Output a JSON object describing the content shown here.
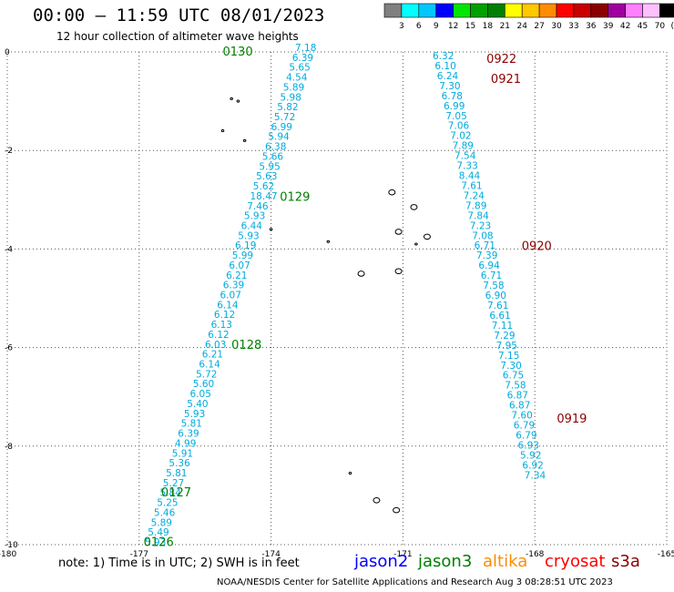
{
  "header": {
    "title": "00:00 – 11:59 UTC 08/01/2023",
    "subtitle": "12 hour collection of altimeter wave heights"
  },
  "colorbar": {
    "labels": [
      "3",
      "6",
      "9",
      "12",
      "15",
      "18",
      "21",
      "24",
      "27",
      "30",
      "33",
      "36",
      "39",
      "42",
      "45",
      "70",
      "(ft)"
    ],
    "colors": [
      "#808080",
      "#00ffff",
      "#00c8ff",
      "#0000ff",
      "#00e600",
      "#00a000",
      "#008000",
      "#ffff00",
      "#ffc800",
      "#ff8c00",
      "#ff0000",
      "#c80000",
      "#8b0000",
      "#a000a0",
      "#ff80ff",
      "#ffc0ff",
      "#000000"
    ]
  },
  "map": {
    "x_ticks": [
      "-180",
      "-177",
      "-174",
      "-171",
      "-168",
      "-165"
    ],
    "y_ticks": [
      "0",
      "-2",
      "-4",
      "-6",
      "-8",
      "-10"
    ],
    "x_range": [
      -180,
      -165
    ],
    "y_range": [
      -10,
      0
    ],
    "grid": "dotted"
  },
  "track_colors": {
    "values": "#00aadd",
    "jason3_time": "#008000",
    "cryosat_time": "#8b0000"
  },
  "tracks": [
    {
      "satellite": "jason3",
      "time_labels": [
        {
          "text": "0130",
          "lon": -175.1,
          "lat": 0.0
        },
        {
          "text": "0129",
          "lon": -173.8,
          "lat": -2.95
        },
        {
          "text": "0128",
          "lon": -174.9,
          "lat": -5.95
        },
        {
          "text": "0127",
          "lon": -176.5,
          "lat": -8.95
        },
        {
          "text": "0126",
          "lon": -176.9,
          "lat": -9.95
        }
      ],
      "values": [
        "7.18",
        "6.39",
        "5.65",
        "4.54",
        "5.89",
        "5.98",
        "5.82",
        "5.72",
        "6.99",
        "5.94",
        "6.38",
        "5.66",
        "5.95",
        "5.63",
        "5.62",
        "18.47",
        "7.46",
        "5.93",
        "6.44",
        "5.93",
        "6.19",
        "5.99",
        "6.07",
        "6.21",
        "6.39",
        "6.07",
        "6.14",
        "6.12",
        "6.13",
        "6.12",
        "6.03",
        "6.21",
        "6.14",
        "5.72",
        "5.60",
        "6.05",
        "5.40",
        "5.93",
        "5.81",
        "6.39",
        "4.99",
        "5.91",
        "5.36",
        "5.81",
        "5.27",
        "5.84",
        "5.25",
        "5.46",
        "5.89",
        "5.49",
        "5.93"
      ]
    },
    {
      "satellite": "cryosat",
      "time_labels": [
        {
          "text": "0922",
          "lon": -169.1,
          "lat": -0.15
        },
        {
          "text": "0921",
          "lon": -169.0,
          "lat": -0.55
        },
        {
          "text": "0920",
          "lon": -168.3,
          "lat": -3.95
        },
        {
          "text": "0919",
          "lon": -167.5,
          "lat": -7.45
        }
      ],
      "values": [
        "6.32",
        "6.10",
        "6.24",
        "7.30",
        "6.78",
        "6.99",
        "7.05",
        "7.06",
        "7.02",
        "7.89",
        "7.54",
        "7.33",
        "8.44",
        "7.61",
        "7.24",
        "7.89",
        "7.84",
        "7.23",
        "7.08",
        "6.71",
        "7.39",
        "6.94",
        "6.71",
        "7.58",
        "6.90",
        "7.61",
        "6.61",
        "7.11",
        "7.29",
        "7.95",
        "7.15",
        "7.30",
        "6.75",
        "7.58",
        "6.87",
        "6.87",
        "7.60",
        "6.79",
        "6.79",
        "6.93",
        "5.92",
        "6.92",
        "7.34"
      ]
    }
  ],
  "islands": [
    {
      "lon": -174.9,
      "lat": -0.95,
      "size": "tiny"
    },
    {
      "lon": -174.75,
      "lat": -1.0,
      "size": "tiny"
    },
    {
      "lon": -175.1,
      "lat": -1.6,
      "size": "tiny"
    },
    {
      "lon": -174.6,
      "lat": -1.8,
      "size": "tiny"
    },
    {
      "lon": -171.25,
      "lat": -2.85,
      "size": "small"
    },
    {
      "lon": -170.75,
      "lat": -3.15,
      "size": "small"
    },
    {
      "lon": -171.1,
      "lat": -3.65,
      "size": "small"
    },
    {
      "lon": -170.45,
      "lat": -3.75,
      "size": "small"
    },
    {
      "lon": -174.0,
      "lat": -3.6,
      "size": "tiny"
    },
    {
      "lon": -172.7,
      "lat": -3.85,
      "size": "tiny"
    },
    {
      "lon": -170.7,
      "lat": -3.9,
      "size": "tiny"
    },
    {
      "lon": -171.95,
      "lat": -4.5,
      "size": "small"
    },
    {
      "lon": -171.1,
      "lat": -4.45,
      "size": "small"
    },
    {
      "lon": -172.2,
      "lat": -8.55,
      "size": "tiny"
    },
    {
      "lon": -171.6,
      "lat": -9.1,
      "size": "small"
    },
    {
      "lon": -171.15,
      "lat": -9.3,
      "size": "small"
    }
  ],
  "footer": {
    "note": "note:  1) Time is in UTC;  2) SWH is in feet",
    "satellites": [
      {
        "name": "jason2",
        "color": "#0000ff"
      },
      {
        "name": "jason3",
        "color": "#008000"
      },
      {
        "name": "altika",
        "color": "#ff8c00"
      },
      {
        "name": "cryosat",
        "color": "#ff0000"
      },
      {
        "name": "s3a",
        "color": "#8b0000"
      }
    ],
    "credit": "NOAA/NESDIS Center for Satellite Applications and Research    Aug  3 08:28:51 UTC 2023"
  }
}
